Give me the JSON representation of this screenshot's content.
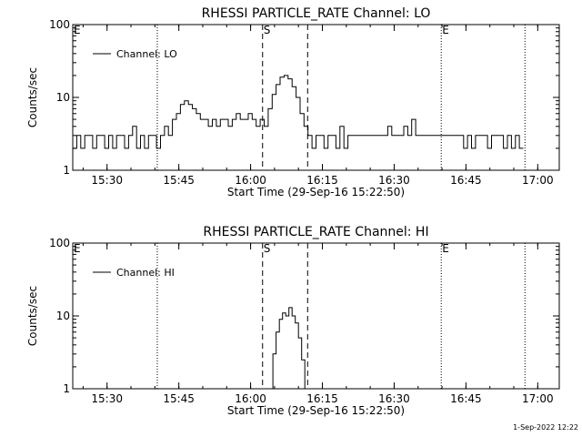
{
  "chart_data": [
    {
      "type": "line",
      "title": "RHESSI PARTICLE_RATE Channel: LO",
      "xlabel": "Start Time (29-Sep-16 15:22:50)",
      "ylabel": "Counts/sec",
      "y_scale": "log",
      "ylim": [
        1,
        100
      ],
      "xlim": [
        "15:22:50",
        "17:04:30"
      ],
      "x_ticks": [
        "15:30",
        "15:45",
        "16:00",
        "16:15",
        "16:30",
        "16:45",
        "17:00"
      ],
      "y_ticks": [
        "1",
        "10",
        "100"
      ],
      "legend": {
        "position": "top-left",
        "entries": [
          "Channel: LO"
        ]
      },
      "grid": false,
      "markers": [
        {
          "label": "E",
          "time": "15:22:50",
          "style": "dotted"
        },
        {
          "label": "",
          "time": "15:40:30",
          "style": "dotted"
        },
        {
          "label": "S",
          "time": "16:02:30",
          "style": "dashed"
        },
        {
          "label": "",
          "time": "16:11:55",
          "style": "dashed"
        },
        {
          "label": "E",
          "time": "16:39:50",
          "style": "dotted"
        },
        {
          "label": "",
          "time": "16:57:20",
          "style": "dotted"
        }
      ],
      "series": [
        {
          "name": "Channel: LO",
          "points": [
            [
              "15:22:50",
              2
            ],
            [
              "15:23:40",
              3
            ],
            [
              "15:24:30",
              2
            ],
            [
              "15:25:20",
              3
            ],
            [
              "15:26:10",
              3
            ],
            [
              "15:27:00",
              2
            ],
            [
              "15:27:50",
              3
            ],
            [
              "15:28:40",
              3
            ],
            [
              "15:29:30",
              2
            ],
            [
              "15:30:20",
              3
            ],
            [
              "15:31:10",
              2
            ],
            [
              "15:32:00",
              3
            ],
            [
              "15:32:50",
              3
            ],
            [
              "15:33:40",
              2
            ],
            [
              "15:34:30",
              3
            ],
            [
              "15:35:20",
              4
            ],
            [
              "15:36:10",
              2
            ],
            [
              "15:37:00",
              3
            ],
            [
              "15:37:50",
              2
            ],
            [
              "15:38:40",
              3
            ],
            [
              "15:39:30",
              3
            ],
            [
              "15:40:20",
              2
            ],
            [
              "15:41:10",
              3
            ],
            [
              "15:42:00",
              4
            ],
            [
              "15:42:50",
              3
            ],
            [
              "15:43:40",
              5
            ],
            [
              "15:44:30",
              6
            ],
            [
              "15:45:20",
              8
            ],
            [
              "15:46:10",
              9
            ],
            [
              "15:47:00",
              8
            ],
            [
              "15:47:50",
              7
            ],
            [
              "15:48:40",
              6
            ],
            [
              "15:49:30",
              5
            ],
            [
              "15:50:20",
              5
            ],
            [
              "15:51:10",
              4
            ],
            [
              "15:52:00",
              5
            ],
            [
              "15:52:50",
              4
            ],
            [
              "15:53:40",
              5
            ],
            [
              "15:54:30",
              5
            ],
            [
              "15:55:20",
              4
            ],
            [
              "15:56:10",
              5
            ],
            [
              "15:57:00",
              6
            ],
            [
              "15:57:50",
              5
            ],
            [
              "15:58:40",
              5
            ],
            [
              "15:59:30",
              6
            ],
            [
              "16:00:20",
              5
            ],
            [
              "16:01:10",
              4
            ],
            [
              "16:02:00",
              5
            ],
            [
              "16:02:50",
              4
            ],
            [
              "16:03:40",
              7
            ],
            [
              "16:04:30",
              11
            ],
            [
              "16:05:20",
              15
            ],
            [
              "16:06:10",
              19
            ],
            [
              "16:07:00",
              20
            ],
            [
              "16:07:50",
              18
            ],
            [
              "16:08:40",
              14
            ],
            [
              "16:09:30",
              10
            ],
            [
              "16:10:20",
              6
            ],
            [
              "16:11:10",
              4
            ],
            [
              "16:12:00",
              3
            ],
            [
              "16:12:50",
              2
            ],
            [
              "16:13:40",
              3
            ],
            [
              "16:14:30",
              3
            ],
            [
              "16:15:20",
              2
            ],
            [
              "16:16:10",
              3
            ],
            [
              "16:17:00",
              3
            ],
            [
              "16:17:50",
              2
            ],
            [
              "16:18:40",
              4
            ],
            [
              "16:19:30",
              2
            ],
            [
              "16:20:20",
              3
            ],
            [
              "16:21:10",
              3
            ],
            [
              "16:22:00",
              3
            ],
            [
              "16:22:50",
              3
            ],
            [
              "16:23:40",
              3
            ],
            [
              "16:24:30",
              3
            ],
            [
              "16:25:20",
              3
            ],
            [
              "16:26:10",
              3
            ],
            [
              "16:27:00",
              3
            ],
            [
              "16:27:50",
              3
            ],
            [
              "16:28:40",
              4
            ],
            [
              "16:29:30",
              3
            ],
            [
              "16:30:20",
              3
            ],
            [
              "16:31:10",
              3
            ],
            [
              "16:32:00",
              4
            ],
            [
              "16:32:50",
              3
            ],
            [
              "16:33:40",
              5
            ],
            [
              "16:34:30",
              3
            ],
            [
              "16:35:20",
              3
            ],
            [
              "16:36:10",
              3
            ],
            [
              "16:37:00",
              3
            ],
            [
              "16:37:50",
              3
            ],
            [
              "16:38:40",
              3
            ],
            [
              "16:39:30",
              3
            ],
            [
              "16:40:20",
              3
            ],
            [
              "16:41:10",
              3
            ],
            [
              "16:42:00",
              3
            ],
            [
              "16:42:50",
              3
            ],
            [
              "16:43:40",
              3
            ],
            [
              "16:44:30",
              2
            ],
            [
              "16:45:20",
              3
            ],
            [
              "16:46:10",
              2
            ],
            [
              "16:47:00",
              3
            ],
            [
              "16:47:50",
              3
            ],
            [
              "16:48:40",
              3
            ],
            [
              "16:49:30",
              2
            ],
            [
              "16:50:20",
              3
            ],
            [
              "16:51:10",
              3
            ],
            [
              "16:52:00",
              3
            ],
            [
              "16:52:50",
              2
            ],
            [
              "16:53:40",
              3
            ],
            [
              "16:54:30",
              2
            ],
            [
              "16:55:20",
              3
            ],
            [
              "16:56:10",
              2
            ],
            [
              "16:57:00",
              2
            ]
          ]
        }
      ]
    },
    {
      "type": "line",
      "title": "RHESSI PARTICLE_RATE Channel: HI",
      "xlabel": "Start Time (29-Sep-16 15:22:50)",
      "ylabel": "Counts/sec",
      "y_scale": "log",
      "ylim": [
        1,
        100
      ],
      "xlim": [
        "15:22:50",
        "17:04:30"
      ],
      "x_ticks": [
        "15:30",
        "15:45",
        "16:00",
        "16:15",
        "16:30",
        "16:45",
        "17:00"
      ],
      "y_ticks": [
        "1",
        "10",
        "100"
      ],
      "legend": {
        "position": "top-left",
        "entries": [
          "Channel: HI"
        ]
      },
      "grid": false,
      "markers": [
        {
          "label": "E",
          "time": "15:22:50",
          "style": "dotted"
        },
        {
          "label": "",
          "time": "15:40:30",
          "style": "dotted"
        },
        {
          "label": "S",
          "time": "16:02:30",
          "style": "dashed"
        },
        {
          "label": "",
          "time": "16:11:55",
          "style": "dashed"
        },
        {
          "label": "E",
          "time": "16:39:50",
          "style": "dotted"
        },
        {
          "label": "",
          "time": "16:57:20",
          "style": "dotted"
        }
      ],
      "series": [
        {
          "name": "Channel: HI",
          "points": [
            [
              "16:04:00",
              1
            ],
            [
              "16:04:40",
              3
            ],
            [
              "16:05:20",
              6
            ],
            [
              "16:06:00",
              9
            ],
            [
              "16:06:40",
              11
            ],
            [
              "16:07:20",
              10
            ],
            [
              "16:08:00",
              13
            ],
            [
              "16:08:40",
              10
            ],
            [
              "16:09:20",
              8
            ],
            [
              "16:10:00",
              5
            ],
            [
              "16:10:40",
              2.5
            ],
            [
              "16:11:20",
              1
            ]
          ]
        }
      ]
    }
  ],
  "footer": {
    "timestamp": "1-Sep-2022 12:22"
  }
}
